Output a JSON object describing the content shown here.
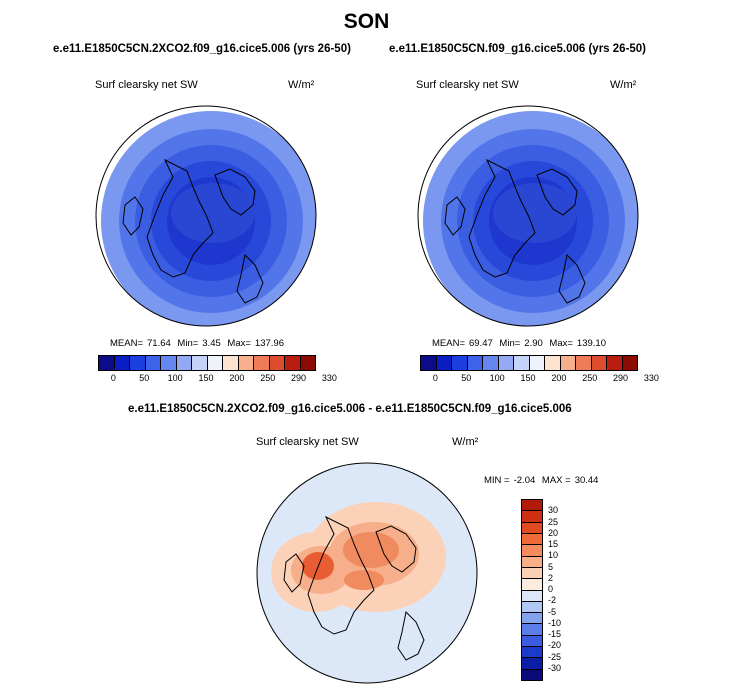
{
  "title": "SON",
  "panels": [
    {
      "case": "e.e11.E1850C5CN.2XCO2.f09_g16.cice5.006 (yrs 26-50)",
      "variable": "Surf clearsky net SW",
      "units": "W/m²",
      "stats": {
        "mean_label": "MEAN=",
        "mean": "71.64",
        "min_label": "Min=",
        "min": "3.45",
        "max_label": "Max=",
        "max": "137.96"
      }
    },
    {
      "case": "e.e11.E1850C5CN.f09_g16.cice5.006 (yrs 26-50)",
      "variable": "Surf clearsky net SW",
      "units": "W/m²",
      "stats": {
        "mean_label": "MEAN=",
        "mean": "69.47",
        "min_label": "Min=",
        "min": "2.90",
        "max_label": "Max=",
        "max": "139.10"
      }
    }
  ],
  "abs_colorbar": {
    "colors": [
      "#0c0c8a",
      "#0b1ec4",
      "#1c3fe0",
      "#3e63ea",
      "#6686f0",
      "#93a9f4",
      "#c5d3f8",
      "#eef2fb",
      "#fbe3cf",
      "#f6b08e",
      "#ee7c56",
      "#dd4c2c",
      "#b81d10",
      "#8c0c04"
    ],
    "tick_labels": [
      "0",
      "50",
      "100",
      "150",
      "200",
      "250",
      "290",
      "330"
    ]
  },
  "diff_panel": {
    "case": "e.e11.E1850C5CN.2XCO2.f09_g16.cice5.006 - e.e11.E1850C5CN.f09_g16.cice5.006",
    "variable": "Surf clearsky net SW",
    "units": "W/m²",
    "stats": {
      "min_label": "MIN =",
      "min": "-2.04",
      "max_label": "MAX =",
      "max": "30.44"
    }
  },
  "diff_colorbar": {
    "colors": [
      "#b11a06",
      "#cf2f12",
      "#e14a20",
      "#ef6a36",
      "#f58c5c",
      "#f9ae88",
      "#fbcfb4",
      "#fcebdf",
      "#dbe6f7",
      "#b0c6f3",
      "#84a2ee",
      "#5c7ee8",
      "#3a5ce0",
      "#1c3bcc",
      "#0a1ea6",
      "#0a0a7a"
    ],
    "tick_labels": [
      "30",
      "25",
      "20",
      "15",
      "10",
      "5",
      "2",
      "0",
      "-2",
      "-5",
      "-10",
      "-15",
      "-20",
      "-25",
      "-30"
    ]
  },
  "map_colors": {
    "abs_levels": [
      "#1d37cf",
      "#2848d9",
      "#3a5de2",
      "#5375ea",
      "#7a98f0"
    ],
    "diff_background": "#dce8f8",
    "diff_warm": [
      "#fbd2b8",
      "#f7ae8a",
      "#f08a5f",
      "#e85d33"
    ]
  }
}
